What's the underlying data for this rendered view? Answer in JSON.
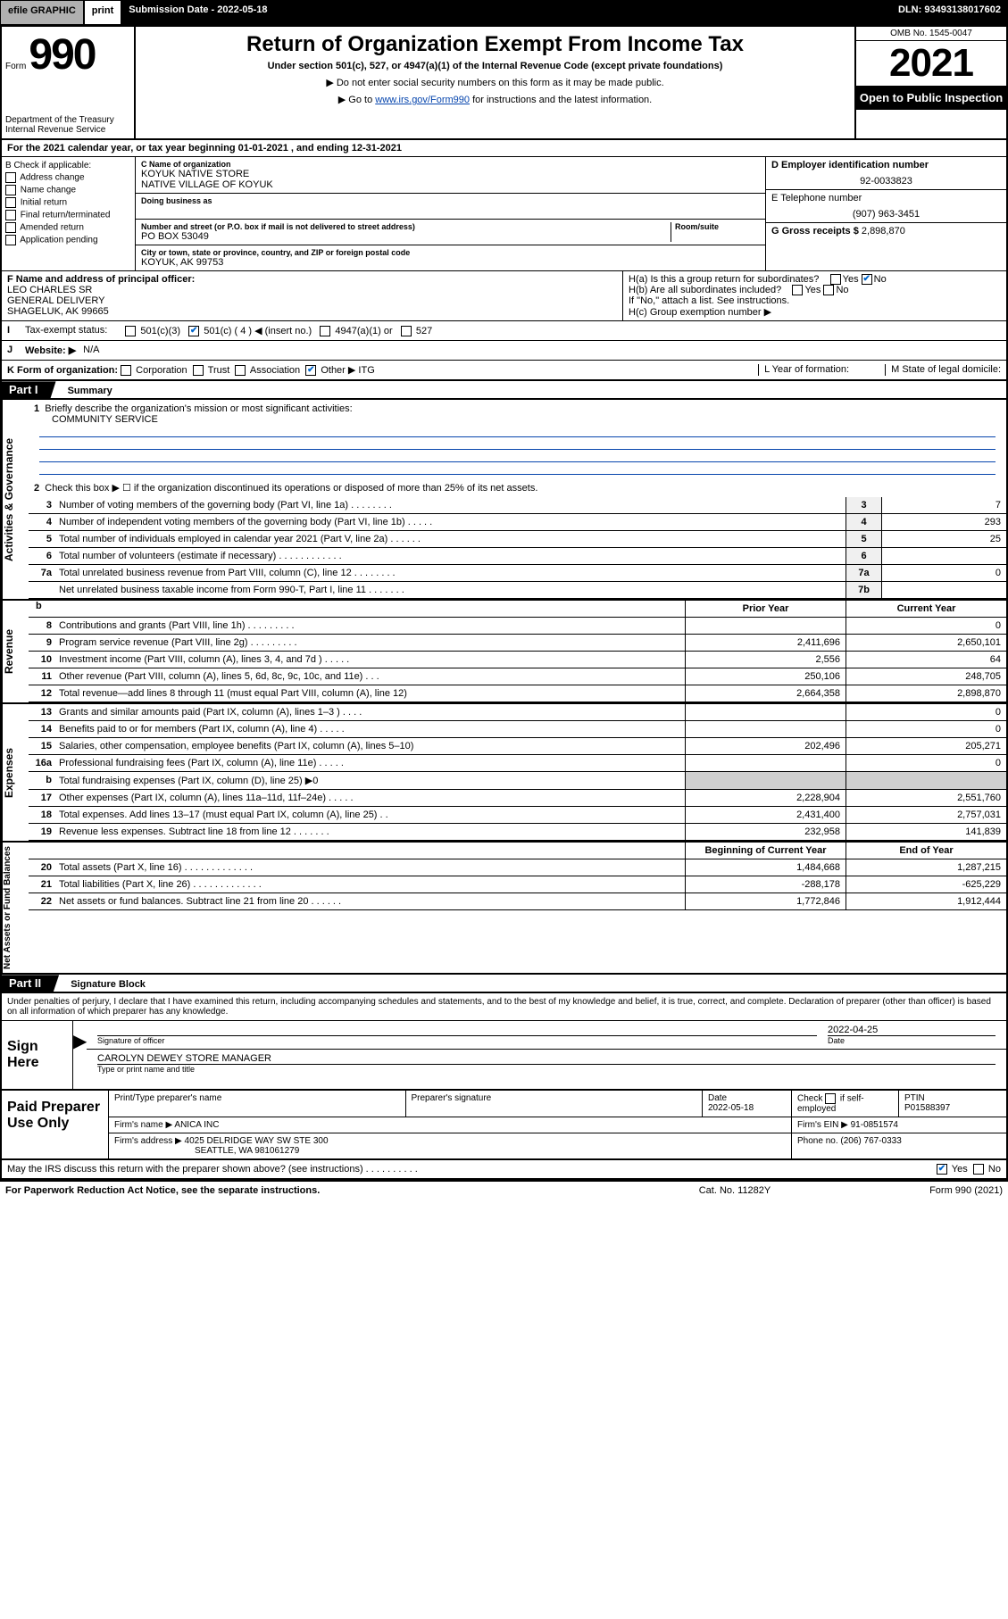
{
  "topbar": {
    "efile": "efile GRAPHIC",
    "print": "print",
    "submission": "Submission Date - 2022-05-18",
    "dln": "DLN: 93493138017602"
  },
  "header": {
    "form_prefix": "Form",
    "form_number": "990",
    "department": "Department of the Treasury\nInternal Revenue Service",
    "title": "Return of Organization Exempt From Income Tax",
    "subtitle": "Under section 501(c), 527, or 4947(a)(1) of the Internal Revenue Code (except private foundations)",
    "note1": "Do not enter social security numbers on this form as it may be made public.",
    "note2_pre": "Go to ",
    "note2_link": "www.irs.gov/Form990",
    "note2_post": " for instructions and the latest information.",
    "omb": "OMB No. 1545-0047",
    "year": "2021",
    "open": "Open to Public Inspection"
  },
  "section_a": "For the 2021 calendar year, or tax year beginning 01-01-2021   , and ending 12-31-2021",
  "col_b": {
    "label": "B Check if applicable:",
    "items": [
      "Address change",
      "Name change",
      "Initial return",
      "Final return/terminated",
      "Amended return",
      "Application pending"
    ]
  },
  "col_c": {
    "name_lbl": "C Name of organization",
    "name1": "KOYUK NATIVE STORE",
    "name2": "NATIVE VILLAGE OF KOYUK",
    "dba_lbl": "Doing business as",
    "addr_lbl": "Number and street (or P.O. box if mail is not delivered to street address)",
    "room_lbl": "Room/suite",
    "addr": "PO BOX 53049",
    "city_lbl": "City or town, state or province, country, and ZIP or foreign postal code",
    "city": "KOYUK, AK  99753"
  },
  "col_d": {
    "ein_lbl": "D Employer identification number",
    "ein": "92-0033823",
    "tel_lbl": "E Telephone number",
    "tel": "(907) 963-3451",
    "gross_lbl": "G Gross receipts $",
    "gross": "2,898,870"
  },
  "row_f": {
    "lbl": "F Name and address of principal officer:",
    "name": "LEO CHARLES SR",
    "addr1": "GENERAL DELIVERY",
    "addr2": "SHAGELUK, AK  99665"
  },
  "row_h": {
    "ha": "H(a)  Is this a group return for subordinates?",
    "hb": "H(b)  Are all subordinates included?",
    "hb_note": "If \"No,\" attach a list. See instructions.",
    "hc": "H(c)  Group exemption number ▶"
  },
  "row_i": {
    "lbl": "Tax-exempt status:",
    "opts": [
      "501(c)(3)",
      "501(c) ( 4 ) ◀ (insert no.)",
      "4947(a)(1) or",
      "527"
    ]
  },
  "row_j": {
    "lbl": "Website: ▶",
    "val": "N/A"
  },
  "row_k": {
    "lbl": "K Form of organization:",
    "opts": [
      "Corporation",
      "Trust",
      "Association",
      "Other ▶"
    ],
    "other": "ITG",
    "l_lbl": "L Year of formation:",
    "m_lbl": "M State of legal domicile:"
  },
  "part1": {
    "header": "Part I",
    "title": "Summary",
    "q1_lbl": "Briefly describe the organization's mission or most significant activities:",
    "q1_val": "COMMUNITY SERVICE",
    "q2": "Check this box ▶ ☐  if the organization discontinued its operations or disposed of more than 25% of its net assets.",
    "lines_single": [
      {
        "n": "3",
        "t": "Number of voting members of the governing body (Part VI, line 1a)  .   .   .   .   .   .   .   .",
        "r": "3",
        "v": "7"
      },
      {
        "n": "4",
        "t": "Number of independent voting members of the governing body (Part VI, line 1b)   .   .   .   .   .",
        "r": "4",
        "v": "293"
      },
      {
        "n": "5",
        "t": "Total number of individuals employed in calendar year 2021 (Part V, line 2a)   .   .   .   .   .   .",
        "r": "5",
        "v": "25"
      },
      {
        "n": "6",
        "t": "Total number of volunteers (estimate if necessary)   .   .   .   .   .   .   .   .   .   .   .   .",
        "r": "6",
        "v": ""
      },
      {
        "n": "7a",
        "t": "Total unrelated business revenue from Part VIII, column (C), line 12   .   .   .   .   .   .   .   .",
        "r": "7a",
        "v": "0"
      },
      {
        "n": "",
        "t": "Net unrelated business taxable income from Form 990-T, Part I, line 11   .   .   .   .   .   .   .",
        "r": "7b",
        "v": ""
      }
    ],
    "col_headers": {
      "b": "b",
      "prior": "Prior Year",
      "current": "Current Year"
    },
    "revenue": [
      {
        "n": "8",
        "t": "Contributions and grants (Part VIII, line 1h)   .   .   .   .   .   .   .   .   .",
        "c1": "",
        "c2": "0"
      },
      {
        "n": "9",
        "t": "Program service revenue (Part VIII, line 2g)    .   .   .   .   .   .   .   .   .",
        "c1": "2,411,696",
        "c2": "2,650,101"
      },
      {
        "n": "10",
        "t": "Investment income (Part VIII, column (A), lines 3, 4, and 7d )   .   .   .   .   .",
        "c1": "2,556",
        "c2": "64"
      },
      {
        "n": "11",
        "t": "Other revenue (Part VIII, column (A), lines 5, 6d, 8c, 9c, 10c, and 11e)   .   .   .",
        "c1": "250,106",
        "c2": "248,705"
      },
      {
        "n": "12",
        "t": "Total revenue—add lines 8 through 11 (must equal Part VIII, column (A), line 12)",
        "c1": "2,664,358",
        "c2": "2,898,870"
      }
    ],
    "expenses": [
      {
        "n": "13",
        "t": "Grants and similar amounts paid (Part IX, column (A), lines 1–3 )   .   .   .   .",
        "c1": "",
        "c2": "0"
      },
      {
        "n": "14",
        "t": "Benefits paid to or for members (Part IX, column (A), line 4)   .   .   .   .   .",
        "c1": "",
        "c2": "0"
      },
      {
        "n": "15",
        "t": "Salaries, other compensation, employee benefits (Part IX, column (A), lines 5–10)",
        "c1": "202,496",
        "c2": "205,271"
      },
      {
        "n": "16a",
        "t": "Professional fundraising fees (Part IX, column (A), line 11e)   .   .   .   .   .",
        "c1": "",
        "c2": "0"
      },
      {
        "n": "b",
        "t": "Total fundraising expenses (Part IX, column (D), line 25) ▶0",
        "c1": "shade",
        "c2": "shade"
      },
      {
        "n": "17",
        "t": "Other expenses (Part IX, column (A), lines 11a–11d, 11f–24e)   .   .   .   .   .",
        "c1": "2,228,904",
        "c2": "2,551,760"
      },
      {
        "n": "18",
        "t": "Total expenses. Add lines 13–17 (must equal Part IX, column (A), line 25)   .   .",
        "c1": "2,431,400",
        "c2": "2,757,031"
      },
      {
        "n": "19",
        "t": "Revenue less expenses. Subtract line 18 from line 12   .   .   .   .   .   .   .",
        "c1": "232,958",
        "c2": "141,839"
      }
    ],
    "net_headers": {
      "begin": "Beginning of Current Year",
      "end": "End of Year"
    },
    "netassets": [
      {
        "n": "20",
        "t": "Total assets (Part X, line 16)   .   .   .   .   .   .   .   .   .   .   .   .   .",
        "c1": "1,484,668",
        "c2": "1,287,215"
      },
      {
        "n": "21",
        "t": "Total liabilities (Part X, line 26)  .   .   .   .   .   .   .   .   .   .   .   .   .",
        "c1": "-288,178",
        "c2": "-625,229"
      },
      {
        "n": "22",
        "t": "Net assets or fund balances. Subtract line 21 from line 20   .   .   .   .   .   .",
        "c1": "1,772,846",
        "c2": "1,912,444"
      }
    ],
    "vtabs": {
      "gov": "Activities & Governance",
      "rev": "Revenue",
      "exp": "Expenses",
      "net": "Net Assets or\nFund Balances"
    }
  },
  "part2": {
    "header": "Part II",
    "title": "Signature Block",
    "penalties": "Under penalties of perjury, I declare that I have examined this return, including accompanying schedules and statements, and to the best of my knowledge and belief, it is true, correct, and complete. Declaration of preparer (other than officer) is based on all information of which preparer has any knowledge."
  },
  "sign": {
    "label": "Sign Here",
    "sig_lbl": "Signature of officer",
    "date": "2022-04-25",
    "date_lbl": "Date",
    "name": "CAROLYN DEWEY  STORE MANAGER",
    "name_lbl": "Type or print name and title"
  },
  "preparer": {
    "label": "Paid Preparer Use Only",
    "h1": "Print/Type preparer's name",
    "h2": "Preparer's signature",
    "h3": "Date",
    "date": "2022-05-18",
    "h4_a": "Check",
    "h4_b": "if self-employed",
    "ptin_lbl": "PTIN",
    "ptin": "P01588397",
    "firm_lbl": "Firm's name   ▶",
    "firm": "ANICA INC",
    "ein_lbl": "Firm's EIN ▶",
    "ein": "91-0851574",
    "addr_lbl": "Firm's address ▶",
    "addr1": "4025 DELRIDGE WAY SW STE 300",
    "addr2": "SEATTLE, WA  981061279",
    "phone_lbl": "Phone no.",
    "phone": "(206) 767-0333"
  },
  "footer": {
    "discuss": "May the IRS discuss this return with the preparer shown above? (see instructions)   .   .   .   .   .   .   .   .   .   .",
    "paperwork": "For Paperwork Reduction Act Notice, see the separate instructions.",
    "cat": "Cat. No. 11282Y",
    "form": "Form 990 (2021)"
  }
}
